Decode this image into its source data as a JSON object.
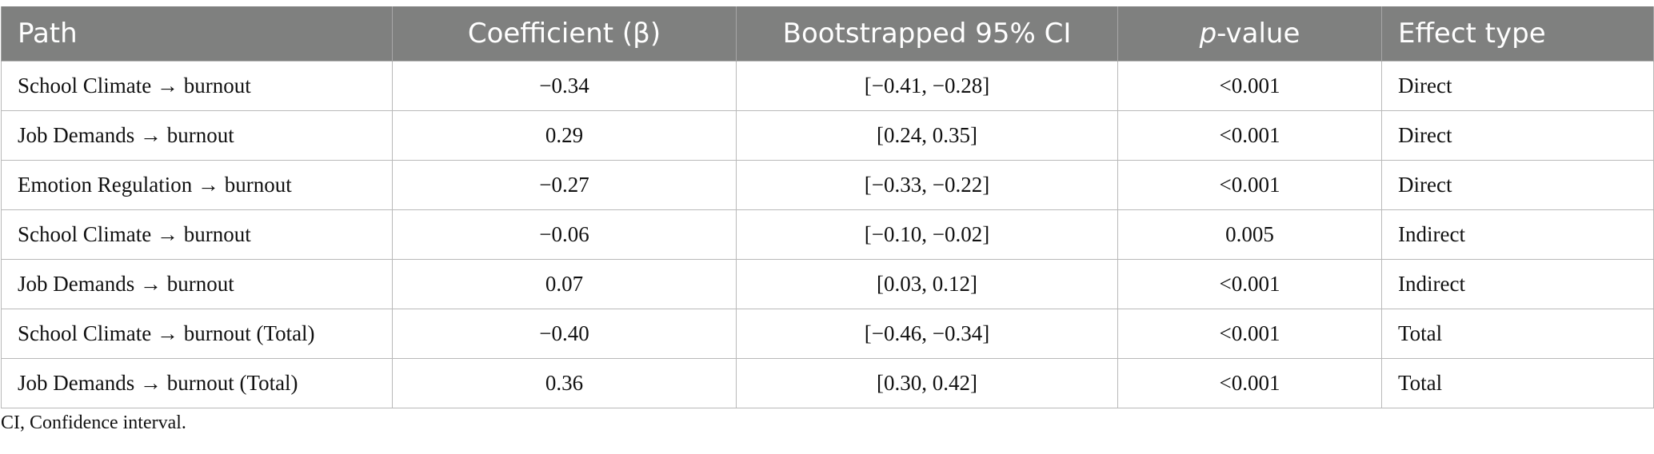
{
  "table": {
    "headers": {
      "path": "Path",
      "coefficient": "Coefficient (β)",
      "ci": "Bootstrapped 95% CI",
      "pvalue_italic": "p",
      "pvalue_rest": "-value",
      "effect": "Effect type"
    },
    "rows": [
      {
        "path": "School Climate → burnout",
        "coefficient": "−0.34",
        "ci": "[−0.41, −0.28]",
        "p": "<0.001",
        "effect": "Direct"
      },
      {
        "path": "Job Demands → burnout",
        "coefficient": "0.29",
        "ci": "[0.24, 0.35]",
        "p": "<0.001",
        "effect": "Direct"
      },
      {
        "path": "Emotion Regulation → burnout",
        "coefficient": "−0.27",
        "ci": "[−0.33, −0.22]",
        "p": "<0.001",
        "effect": "Direct"
      },
      {
        "path": "School Climate → burnout",
        "coefficient": "−0.06",
        "ci": "[−0.10, −0.02]",
        "p": "0.005",
        "effect": "Indirect"
      },
      {
        "path": "Job Demands → burnout",
        "coefficient": "0.07",
        "ci": "[0.03, 0.12]",
        "p": "<0.001",
        "effect": "Indirect"
      },
      {
        "path": "School Climate → burnout (Total)",
        "coefficient": "−0.40",
        "ci": "[−0.46, −0.34]",
        "p": "<0.001",
        "effect": "Total"
      },
      {
        "path": "Job Demands → burnout (Total)",
        "coefficient": "0.36",
        "ci": "[0.30, 0.42]",
        "p": "<0.001",
        "effect": "Total"
      }
    ]
  },
  "footnote": "CI, Confidence interval."
}
